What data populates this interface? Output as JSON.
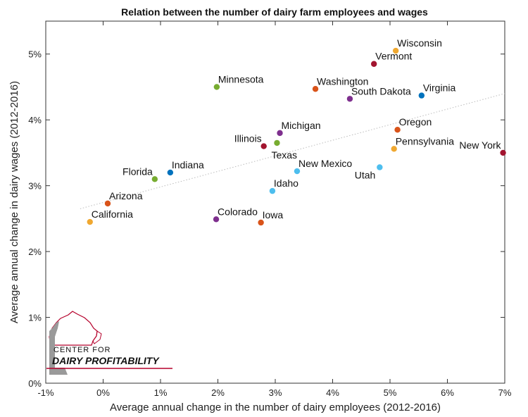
{
  "chart_data": {
    "type": "scatter",
    "title": "Relation between the number of dairy farm employees and wages",
    "xlabel": "Average annual change in the number of dairy employees (2012-2016)",
    "ylabel": "Average annual change in dairy wages (2012-2016)",
    "xlim": [
      -1,
      7
    ],
    "ylim": [
      0,
      5.5
    ],
    "xticks": [
      "-1%",
      "0%",
      "1%",
      "2%",
      "3%",
      "4%",
      "5%",
      "6%",
      "7%"
    ],
    "xtick_values": [
      -1,
      0,
      1,
      2,
      3,
      4,
      5,
      6,
      7
    ],
    "yticks": [
      "0%",
      "1%",
      "2%",
      "3%",
      "4%",
      "5%"
    ],
    "ytick_values": [
      0,
      1,
      2,
      3,
      4,
      5
    ],
    "grid": false,
    "trendline": {
      "x": [
        -0.4,
        7.0
      ],
      "y": [
        2.65,
        4.4
      ],
      "color": "#bbbbbb",
      "style": "dotted"
    },
    "points": [
      {
        "name": "Wisconsin",
        "x": 5.1,
        "y": 5.05,
        "color": "#f0a830",
        "label_anchor": "start"
      },
      {
        "name": "Vermont",
        "x": 4.72,
        "y": 4.85,
        "color": "#a2142f",
        "label_anchor": "start"
      },
      {
        "name": "Minnesota",
        "x": 1.98,
        "y": 4.5,
        "color": "#77ac30",
        "label_anchor": "start"
      },
      {
        "name": "Washington",
        "x": 3.7,
        "y": 4.47,
        "color": "#d95319",
        "label_anchor": "start"
      },
      {
        "name": "South Dakota",
        "x": 4.3,
        "y": 4.32,
        "color": "#7e2f8e",
        "label_anchor": "start"
      },
      {
        "name": "Virginia",
        "x": 5.55,
        "y": 4.37,
        "color": "#0072bd",
        "label_anchor": "start"
      },
      {
        "name": "Michigan",
        "x": 3.08,
        "y": 3.8,
        "color": "#7e2f8e",
        "label_anchor": "start"
      },
      {
        "name": "Oregon",
        "x": 5.13,
        "y": 3.85,
        "color": "#d95319",
        "label_anchor": "start"
      },
      {
        "name": "Illinois",
        "x": 2.8,
        "y": 3.6,
        "color": "#a2142f",
        "label_anchor": "end"
      },
      {
        "name": "Texas",
        "x": 3.03,
        "y": 3.65,
        "color": "#77ac30",
        "label_anchor": "below"
      },
      {
        "name": "Pennsylvania",
        "x": 5.07,
        "y": 3.56,
        "color": "#f0a830",
        "label_anchor": "start"
      },
      {
        "name": "New York",
        "x": 6.97,
        "y": 3.5,
        "color": "#a2142f",
        "label_anchor": "end"
      },
      {
        "name": "Florida",
        "x": 0.9,
        "y": 3.1,
        "color": "#77ac30",
        "label_anchor": "end"
      },
      {
        "name": "Indiana",
        "x": 1.17,
        "y": 3.2,
        "color": "#0072bd",
        "label_anchor": "start"
      },
      {
        "name": "New Mexico",
        "x": 3.38,
        "y": 3.22,
        "color": "#4dbeee",
        "label_anchor": "start"
      },
      {
        "name": "Utah",
        "x": 4.82,
        "y": 3.28,
        "color": "#4dbeee",
        "label_anchor": "below-end"
      },
      {
        "name": "Idaho",
        "x": 2.95,
        "y": 2.92,
        "color": "#4dbeee",
        "label_anchor": "start"
      },
      {
        "name": "Arizona",
        "x": 0.08,
        "y": 2.73,
        "color": "#d95319",
        "label_anchor": "start"
      },
      {
        "name": "California",
        "x": -0.23,
        "y": 2.45,
        "color": "#f0a830",
        "label_anchor": "start"
      },
      {
        "name": "Colorado",
        "x": 1.97,
        "y": 2.49,
        "color": "#7e2f8e",
        "label_anchor": "start"
      },
      {
        "name": "Iowa",
        "x": 2.75,
        "y": 2.44,
        "color": "#d95319",
        "label_anchor": "start"
      }
    ]
  },
  "logo": {
    "line1": "CENTER FOR",
    "line2": "DAIRY PROFITABILITY",
    "accent_color": "#b5002b"
  }
}
